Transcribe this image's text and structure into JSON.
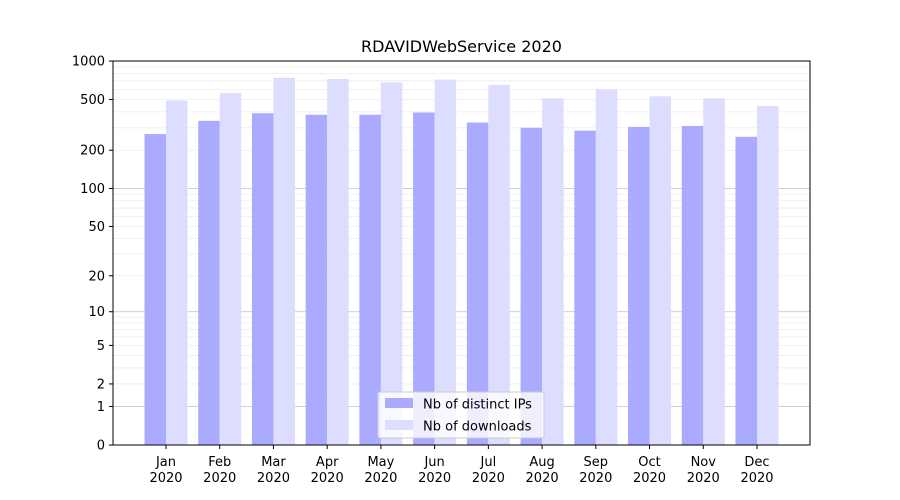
{
  "chart_data": {
    "type": "bar",
    "title": "RDAVIDWebService 2020",
    "xlabel": "",
    "ylabel": "",
    "yscale": "log(1+y)",
    "ylim": [
      0,
      1000
    ],
    "yticks": [
      0,
      1,
      2,
      5,
      10,
      20,
      50,
      100,
      200,
      500,
      1000
    ],
    "grid": true,
    "legend_position": "bottom-center",
    "categories": [
      [
        "Jan",
        "2020"
      ],
      [
        "Feb",
        "2020"
      ],
      [
        "Mar",
        "2020"
      ],
      [
        "Apr",
        "2020"
      ],
      [
        "May",
        "2020"
      ],
      [
        "Jun",
        "2020"
      ],
      [
        "Jul",
        "2020"
      ],
      [
        "Aug",
        "2020"
      ],
      [
        "Sep",
        "2020"
      ],
      [
        "Oct",
        "2020"
      ],
      [
        "Nov",
        "2020"
      ],
      [
        "Dec",
        "2020"
      ]
    ],
    "series": [
      {
        "name": "Nb of distinct IPs",
        "color": "#aaaaff",
        "values": [
          268,
          340,
          390,
          380,
          380,
          395,
          330,
          300,
          285,
          305,
          310,
          255
        ]
      },
      {
        "name": "Nb of downloads",
        "color": "#ddddff",
        "values": [
          490,
          560,
          740,
          725,
          680,
          715,
          650,
          510,
          600,
          530,
          510,
          445
        ]
      }
    ]
  }
}
